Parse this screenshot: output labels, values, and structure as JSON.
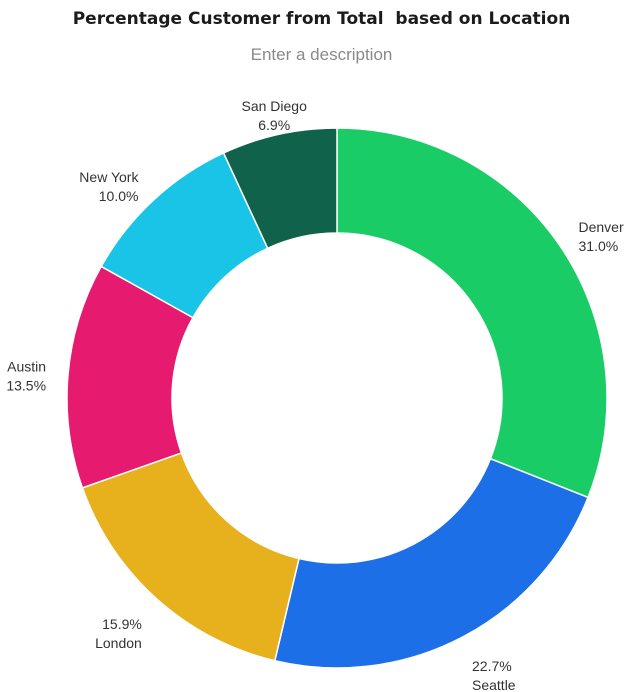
{
  "chart_data": {
    "type": "pie",
    "variant": "donut",
    "title": "Percentage Customer from Total  based on Location",
    "subtitle": "Enter a description",
    "slices": [
      {
        "label": "Denver",
        "value": 31.0,
        "display": "31.0%",
        "color": "#19cc65"
      },
      {
        "label": "Seattle",
        "value": 22.7,
        "display": "22.7%",
        "color": "#1c6fe6"
      },
      {
        "label": "London",
        "value": 15.9,
        "display": "15.9%",
        "color": "#e6b11d"
      },
      {
        "label": "Austin",
        "value": 13.5,
        "display": "13.5%",
        "color": "#e61b6f"
      },
      {
        "label": "New York",
        "value": 10.0,
        "display": "10.0%",
        "color": "#1ac4e6"
      },
      {
        "label": "San Diego",
        "value": 6.9,
        "display": "6.9%",
        "color": "#10634a"
      }
    ],
    "start_angle": "12 o'clock",
    "direction": "clockwise",
    "legend": "none (labels outside slices)"
  }
}
